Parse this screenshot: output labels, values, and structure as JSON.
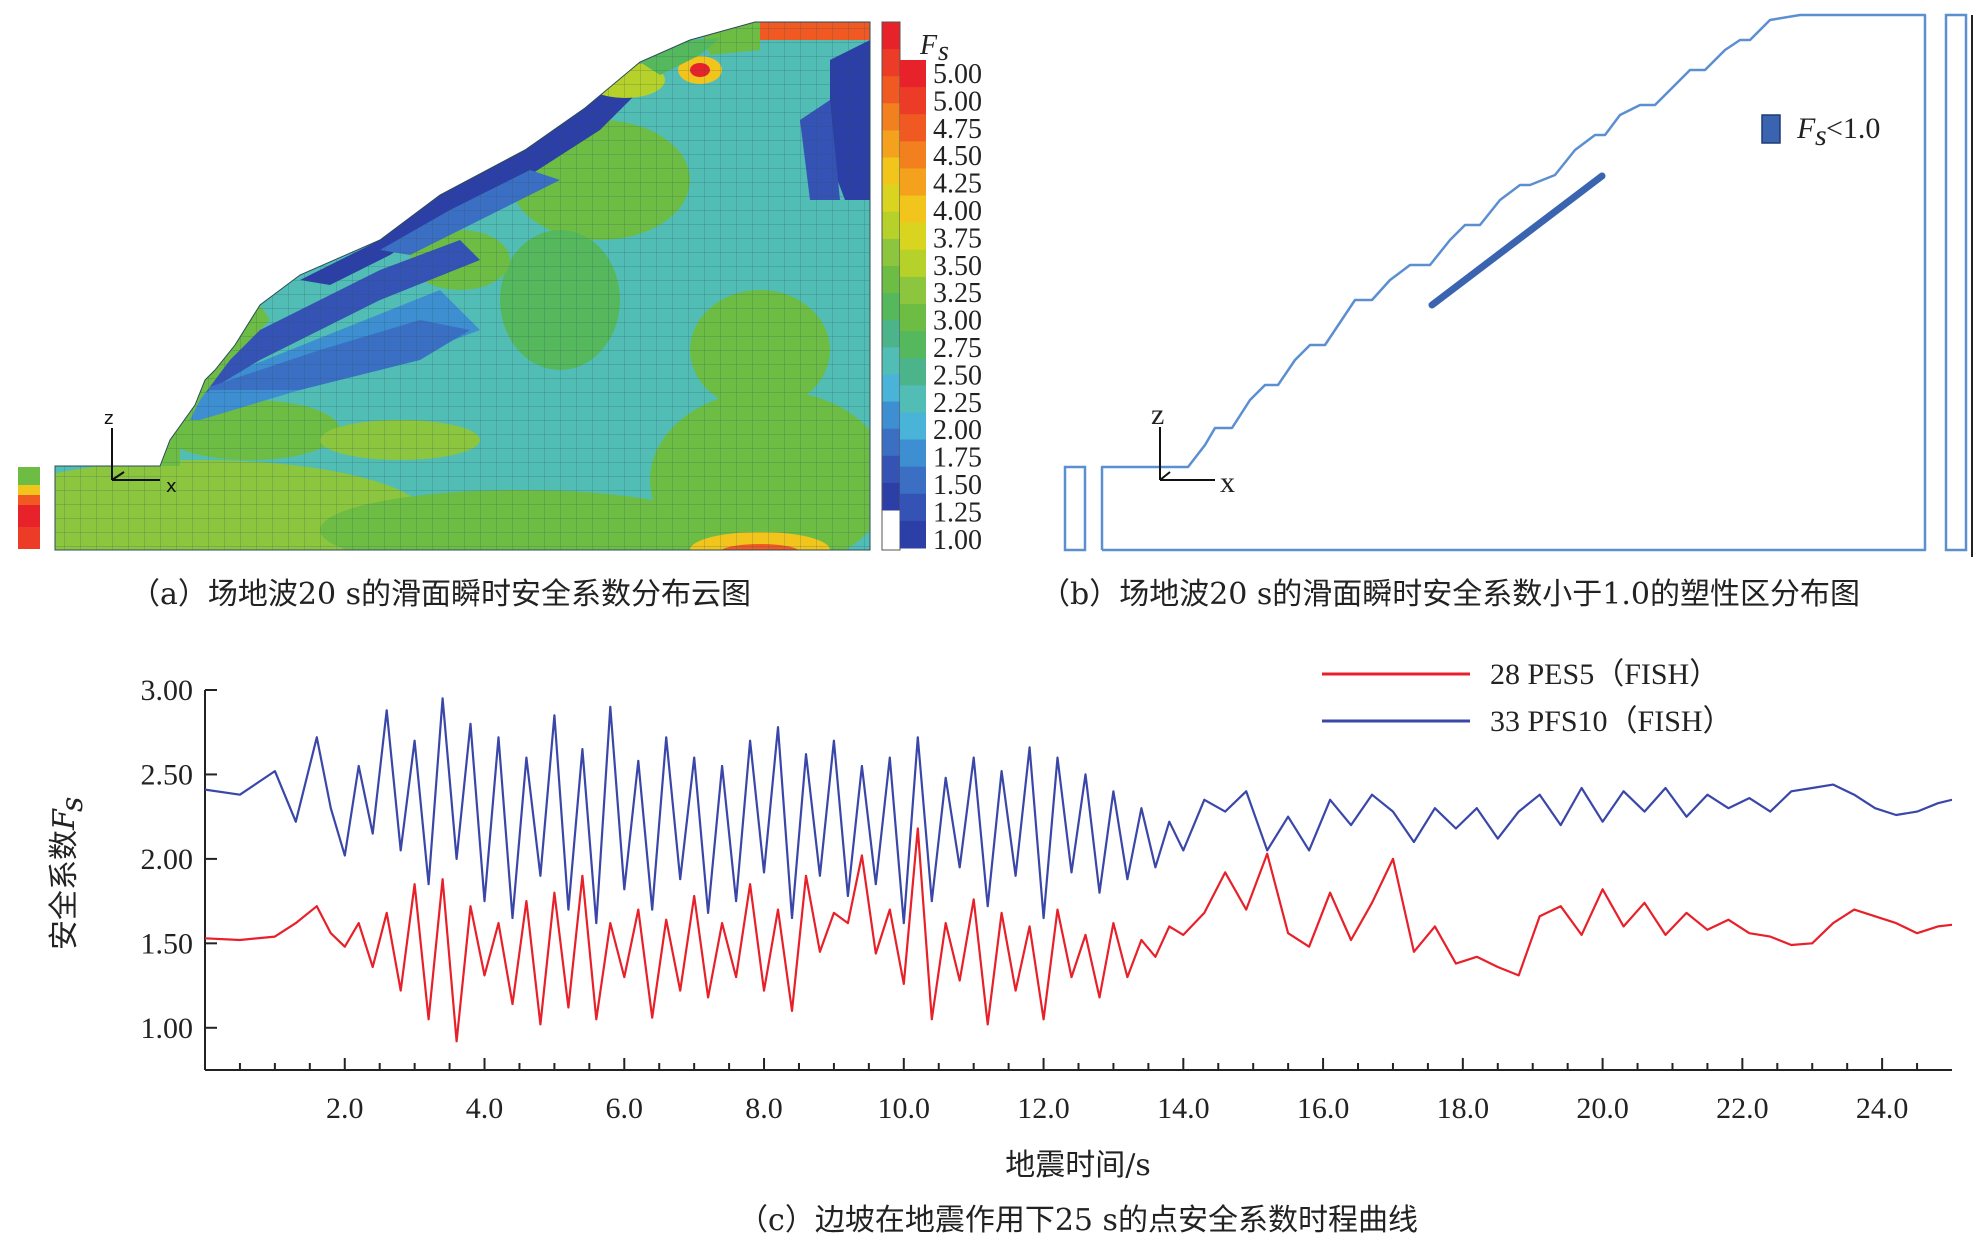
{
  "panel_a": {
    "caption": "（a）场地波20 s的滑面瞬时安全系数分布云图",
    "colorbar_title": "F",
    "colorbar_title_sub": "s",
    "colorbar_labels": [
      "5.00",
      "5.00",
      "4.75",
      "4.50",
      "4.25",
      "4.00",
      "3.75",
      "3.50",
      "3.25",
      "3.00",
      "2.75",
      "2.50",
      "2.25",
      "2.00",
      "1.75",
      "1.50",
      "1.25",
      "1.00"
    ],
    "colorbar_colors": [
      "#e8222b",
      "#ec3b27",
      "#f05a22",
      "#f2801f",
      "#f4a21e",
      "#f2c51d",
      "#d8d420",
      "#b5d12a",
      "#8cc63f",
      "#6dbd45",
      "#55b85c",
      "#4cb48a",
      "#52bdb5",
      "#49b3d8",
      "#3d8fd1",
      "#3a6fc4",
      "#3553b5",
      "#2c3fa6"
    ],
    "axis_z": "z",
    "axis_x": "x"
  },
  "panel_b": {
    "caption": "（b）场地波20 s的滑面瞬时安全系数小于1.0的塑性区分布图",
    "legend_label_main": "F",
    "legend_label_sub": "s",
    "legend_label_rest": "<1.0",
    "axis_z": "z",
    "axis_x": "x",
    "outline_color": "#5b8fd0",
    "zone_color": "#3a64b0"
  },
  "panel_c": {
    "caption": "（c）边坡在地震作用下25 s的点安全系数时程曲线",
    "chart_data": {
      "type": "line",
      "title": "",
      "xlabel": "地震时间/s",
      "ylabel_main": "安全系数",
      "ylabel_symbol": "F",
      "ylabel_sub": "s",
      "xlim": [
        0,
        25
      ],
      "ylim": [
        0.75,
        3.0
      ],
      "x_ticks": [
        "2.0",
        "4.0",
        "6.0",
        "8.0",
        "10.0",
        "12.0",
        "14.0",
        "16.0",
        "18.0",
        "20.0",
        "22.0",
        "24.0"
      ],
      "y_ticks": [
        "1.00",
        "1.50",
        "2.00",
        "2.50",
        "3.00"
      ],
      "legend_position": "top-right",
      "series": [
        {
          "name": "28 PES5（FISH）",
          "color": "#e8202a",
          "x": [
            0,
            0.5,
            1.0,
            1.3,
            1.6,
            1.8,
            2.0,
            2.2,
            2.4,
            2.6,
            2.8,
            3.0,
            3.2,
            3.4,
            3.6,
            3.8,
            4.0,
            4.2,
            4.4,
            4.6,
            4.8,
            5.0,
            5.2,
            5.4,
            5.6,
            5.8,
            6.0,
            6.2,
            6.4,
            6.6,
            6.8,
            7.0,
            7.2,
            7.4,
            7.6,
            7.8,
            8.0,
            8.2,
            8.4,
            8.6,
            8.8,
            9.0,
            9.2,
            9.4,
            9.6,
            9.8,
            10.0,
            10.2,
            10.4,
            10.6,
            10.8,
            11.0,
            11.2,
            11.4,
            11.6,
            11.8,
            12.0,
            12.2,
            12.4,
            12.6,
            12.8,
            13.0,
            13.2,
            13.4,
            13.6,
            13.8,
            14.0,
            14.3,
            14.6,
            14.9,
            15.2,
            15.5,
            15.8,
            16.1,
            16.4,
            16.7,
            17.0,
            17.3,
            17.6,
            17.9,
            18.2,
            18.5,
            18.8,
            19.1,
            19.4,
            19.7,
            20.0,
            20.3,
            20.6,
            20.9,
            21.2,
            21.5,
            21.8,
            22.1,
            22.4,
            22.7,
            23.0,
            23.3,
            23.6,
            23.9,
            24.2,
            24.5,
            24.8,
            25.0
          ],
          "y": [
            1.53,
            1.52,
            1.54,
            1.62,
            1.72,
            1.56,
            1.48,
            1.62,
            1.36,
            1.68,
            1.22,
            1.85,
            1.05,
            1.88,
            0.92,
            1.72,
            1.31,
            1.62,
            1.14,
            1.75,
            1.02,
            1.8,
            1.12,
            1.9,
            1.05,
            1.62,
            1.3,
            1.7,
            1.06,
            1.64,
            1.22,
            1.78,
            1.18,
            1.62,
            1.3,
            1.85,
            1.22,
            1.7,
            1.1,
            1.9,
            1.45,
            1.68,
            1.62,
            2.02,
            1.44,
            1.7,
            1.26,
            2.18,
            1.05,
            1.62,
            1.28,
            1.76,
            1.02,
            1.68,
            1.22,
            1.6,
            1.05,
            1.7,
            1.3,
            1.55,
            1.18,
            1.62,
            1.3,
            1.52,
            1.42,
            1.6,
            1.55,
            1.68,
            1.92,
            1.7,
            2.03,
            1.56,
            1.48,
            1.8,
            1.52,
            1.74,
            2.0,
            1.45,
            1.6,
            1.38,
            1.42,
            1.36,
            1.31,
            1.66,
            1.72,
            1.55,
            1.82,
            1.6,
            1.74,
            1.55,
            1.68,
            1.58,
            1.64,
            1.56,
            1.54,
            1.49,
            1.5,
            1.62,
            1.7,
            1.66,
            1.62,
            1.56,
            1.6,
            1.61
          ]
        },
        {
          "name": "33 PFS10（FISH）",
          "color": "#3a47a8",
          "x": [
            0,
            0.5,
            1.0,
            1.3,
            1.6,
            1.8,
            2.0,
            2.2,
            2.4,
            2.6,
            2.8,
            3.0,
            3.2,
            3.4,
            3.6,
            3.8,
            4.0,
            4.2,
            4.4,
            4.6,
            4.8,
            5.0,
            5.2,
            5.4,
            5.6,
            5.8,
            6.0,
            6.2,
            6.4,
            6.6,
            6.8,
            7.0,
            7.2,
            7.4,
            7.6,
            7.8,
            8.0,
            8.2,
            8.4,
            8.6,
            8.8,
            9.0,
            9.2,
            9.4,
            9.6,
            9.8,
            10.0,
            10.2,
            10.4,
            10.6,
            10.8,
            11.0,
            11.2,
            11.4,
            11.6,
            11.8,
            12.0,
            12.2,
            12.4,
            12.6,
            12.8,
            13.0,
            13.2,
            13.4,
            13.6,
            13.8,
            14.0,
            14.3,
            14.6,
            14.9,
            15.2,
            15.5,
            15.8,
            16.1,
            16.4,
            16.7,
            17.0,
            17.3,
            17.6,
            17.9,
            18.2,
            18.5,
            18.8,
            19.1,
            19.4,
            19.7,
            20.0,
            20.3,
            20.6,
            20.9,
            21.2,
            21.5,
            21.8,
            22.1,
            22.4,
            22.7,
            23.0,
            23.3,
            23.6,
            23.9,
            24.2,
            24.5,
            24.8,
            25.0
          ],
          "y": [
            2.41,
            2.38,
            2.52,
            2.22,
            2.72,
            2.3,
            2.02,
            2.55,
            2.15,
            2.88,
            2.05,
            2.7,
            1.85,
            2.95,
            2.0,
            2.8,
            1.75,
            2.72,
            1.65,
            2.6,
            1.9,
            2.85,
            1.7,
            2.65,
            1.62,
            2.9,
            1.82,
            2.58,
            1.7,
            2.72,
            1.88,
            2.6,
            1.68,
            2.55,
            1.75,
            2.7,
            1.92,
            2.78,
            1.65,
            2.62,
            1.9,
            2.7,
            1.78,
            2.55,
            1.85,
            2.6,
            1.62,
            2.72,
            1.75,
            2.48,
            1.95,
            2.6,
            1.72,
            2.52,
            1.9,
            2.66,
            1.65,
            2.6,
            1.92,
            2.5,
            1.8,
            2.4,
            1.88,
            2.3,
            1.95,
            2.22,
            2.05,
            2.35,
            2.28,
            2.4,
            2.05,
            2.25,
            2.05,
            2.35,
            2.2,
            2.38,
            2.28,
            2.1,
            2.3,
            2.18,
            2.3,
            2.12,
            2.28,
            2.38,
            2.2,
            2.42,
            2.22,
            2.4,
            2.28,
            2.42,
            2.25,
            2.38,
            2.3,
            2.36,
            2.28,
            2.4,
            2.42,
            2.44,
            2.38,
            2.3,
            2.26,
            2.28,
            2.33,
            2.35
          ]
        }
      ]
    }
  }
}
